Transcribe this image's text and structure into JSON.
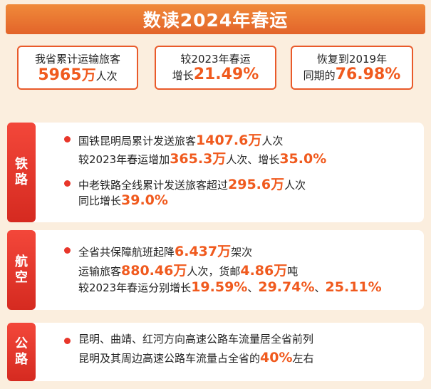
{
  "title": "数读2024年春运",
  "stats": [
    {
      "line1": "我省累计运输旅客",
      "value": "5965",
      "unit": "万",
      "suffix": "人次"
    },
    {
      "line1": "较2023年春运",
      "prefix": "增长",
      "value": "21.49%"
    },
    {
      "line1": "恢复到2019年",
      "prefix": "同期的",
      "value": "76.98%"
    }
  ],
  "sections": {
    "railway": {
      "tab": [
        "铁",
        "路"
      ],
      "item1": {
        "a": "国铁昆明局累计发送旅客",
        "n1": "1407.6万",
        "b": "人次",
        "c": "较2023年春运增加",
        "n2": "365.3万",
        "d": "人次、增长",
        "n3": "35.0%"
      },
      "item2": {
        "a": "中老铁路全线累计发送旅客超过",
        "n1": "295.6万",
        "b": "人次",
        "c": "同比增长",
        "n2": "39.0%"
      }
    },
    "aviation": {
      "tab": [
        "航",
        "空"
      ],
      "a": "全省共保障航班起降",
      "n1": "6.437万",
      "b": "架次",
      "c": "运输旅客",
      "n2": "880.46万",
      "d": "人次，货邮",
      "n3": "4.86万",
      "e": "吨",
      "f": "较2023年春运分别增长",
      "n4": "19.59%",
      "sep1": "、",
      "n5": "29.74%",
      "sep2": "、",
      "n6": "25.11%"
    },
    "highway": {
      "tab": [
        "公",
        "路"
      ],
      "a": "昆明、曲靖、红河方向高速公路车流量居全省前列",
      "b": "昆明及其周边高速公路车流量占全省的",
      "n1": "40%",
      "c": "左右"
    }
  }
}
